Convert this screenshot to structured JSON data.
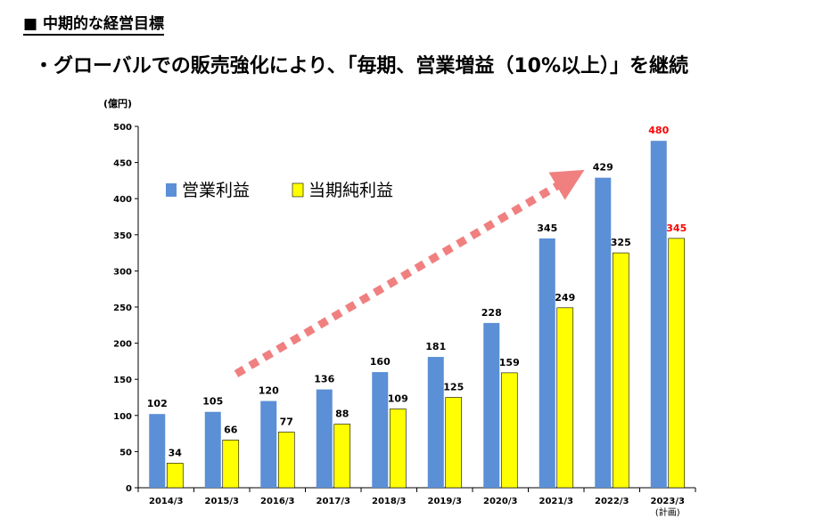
{
  "section_title": "■ 中期的な経営目標",
  "headline": "・グローバルでの販売強化により､「毎期、営業増益（10%以上）」を継続",
  "chart_data": {
    "type": "bar",
    "title": "",
    "ylabel": "(億円)",
    "xlabel": "",
    "ylim": [
      0,
      500
    ],
    "yticks": [
      0,
      50,
      100,
      150,
      200,
      250,
      300,
      350,
      400,
      450,
      500
    ],
    "categories": [
      "2014/3",
      "2015/3",
      "2016/3",
      "2017/3",
      "2018/3",
      "2019/3",
      "2020/3",
      "2021/3",
      "2022/3",
      "2023/3"
    ],
    "category_notes": [
      "",
      "",
      "",
      "",
      "",
      "",
      "",
      "",
      "",
      "(計画)"
    ],
    "series": [
      {
        "name": "営業利益",
        "color": "#5b8fd6",
        "values": [
          102,
          105,
          120,
          136,
          160,
          181,
          228,
          345,
          429,
          480
        ]
      },
      {
        "name": "当期純利益",
        "color": "#ffff00",
        "values": [
          34,
          66,
          77,
          88,
          109,
          125,
          159,
          249,
          325,
          345
        ]
      }
    ],
    "highlight_last_label_color": "#ff0000",
    "legend": "top-left",
    "arrow_color": "#f08080"
  }
}
